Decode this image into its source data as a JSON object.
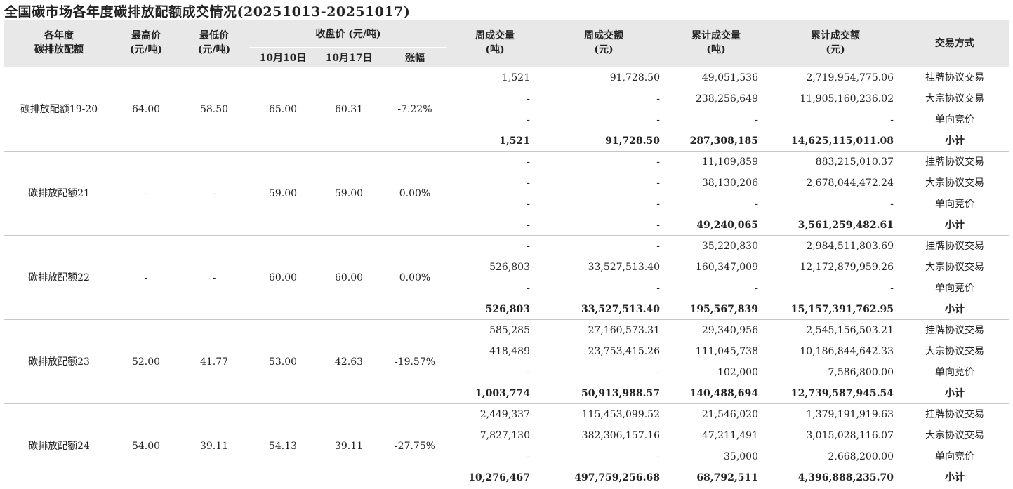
{
  "title": "全国碳市场各年度碳排放配额成交情况(20251013-20251017)",
  "headers": {
    "col1_line1": "各年度",
    "col1_line2": "碳排放配额",
    "high_line1": "最高价",
    "high_line2": "(元/吨)",
    "low_line1": "最低价",
    "low_line2": "(元/吨)",
    "close_group": "收盘价 (元/吨)",
    "close_d1": "10月10日",
    "close_d2": "10月17日",
    "change": "涨幅",
    "wvol_line1": "周成交量",
    "wvol_line2": "(吨)",
    "wamt_line1": "周成交额",
    "wamt_line2": "(元)",
    "cvol_line1": "累计成交量",
    "cvol_line2": "(吨)",
    "camt_line1": "累计成交额",
    "camt_line2": "(元)",
    "method": "交易方式"
  },
  "groups": [
    {
      "name": "碳排放配额19-20",
      "high": "64.00",
      "low": "58.50",
      "close1": "65.00",
      "close2": "60.31",
      "change": "-7.22%",
      "rows": [
        {
          "wvol": "1,521",
          "wamt": "91,728.50",
          "cvol": "49,051,536",
          "camt": "2,719,954,775.06",
          "method": "挂牌协议交易"
        },
        {
          "wvol": "-",
          "wamt": "-",
          "cvol": "238,256,649",
          "camt": "11,905,160,236.02",
          "method": "大宗协议交易"
        },
        {
          "wvol": "-",
          "wamt": "-",
          "cvol": "-",
          "camt": "-",
          "method": "单向竞价"
        },
        {
          "wvol": "1,521",
          "wamt": "91,728.50",
          "cvol": "287,308,185",
          "camt": "14,625,115,011.08",
          "method": "小计"
        }
      ]
    },
    {
      "name": "碳排放配额21",
      "high": "-",
      "low": "-",
      "close1": "59.00",
      "close2": "59.00",
      "change": "0.00%",
      "rows": [
        {
          "wvol": "-",
          "wamt": "-",
          "cvol": "11,109,859",
          "camt": "883,215,010.37",
          "method": "挂牌协议交易"
        },
        {
          "wvol": "-",
          "wamt": "-",
          "cvol": "38,130,206",
          "camt": "2,678,044,472.24",
          "method": "大宗协议交易"
        },
        {
          "wvol": "-",
          "wamt": "-",
          "cvol": "-",
          "camt": "-",
          "method": "单向竞价"
        },
        {
          "wvol": "-",
          "wamt": "-",
          "cvol": "49,240,065",
          "camt": "3,561,259,482.61",
          "method": "小计"
        }
      ]
    },
    {
      "name": "碳排放配额22",
      "high": "-",
      "low": "-",
      "close1": "60.00",
      "close2": "60.00",
      "change": "0.00%",
      "rows": [
        {
          "wvol": "-",
          "wamt": "-",
          "cvol": "35,220,830",
          "camt": "2,984,511,803.69",
          "method": "挂牌协议交易"
        },
        {
          "wvol": "526,803",
          "wamt": "33,527,513.40",
          "cvol": "160,347,009",
          "camt": "12,172,879,959.26",
          "method": "大宗协议交易"
        },
        {
          "wvol": "-",
          "wamt": "-",
          "cvol": "-",
          "camt": "-",
          "method": "单向竞价"
        },
        {
          "wvol": "526,803",
          "wamt": "33,527,513.40",
          "cvol": "195,567,839",
          "camt": "15,157,391,762.95",
          "method": "小计"
        }
      ]
    },
    {
      "name": "碳排放配额23",
      "high": "52.00",
      "low": "41.77",
      "close1": "53.00",
      "close2": "42.63",
      "change": "-19.57%",
      "rows": [
        {
          "wvol": "585,285",
          "wamt": "27,160,573.31",
          "cvol": "29,340,956",
          "camt": "2,545,156,503.21",
          "method": "挂牌协议交易"
        },
        {
          "wvol": "418,489",
          "wamt": "23,753,415.26",
          "cvol": "111,045,738",
          "camt": "10,186,844,642.33",
          "method": "大宗协议交易"
        },
        {
          "wvol": "-",
          "wamt": "-",
          "cvol": "102,000",
          "camt": "7,586,800.00",
          "method": "单向竞价"
        },
        {
          "wvol": "1,003,774",
          "wamt": "50,913,988.57",
          "cvol": "140,488,694",
          "camt": "12,739,587,945.54",
          "method": "小计"
        }
      ]
    },
    {
      "name": "碳排放配额24",
      "high": "54.00",
      "low": "39.11",
      "close1": "54.13",
      "close2": "39.11",
      "change": "-27.75%",
      "rows": [
        {
          "wvol": "2,449,337",
          "wamt": "115,453,099.52",
          "cvol": "21,546,020",
          "camt": "1,379,191,919.63",
          "method": "挂牌协议交易"
        },
        {
          "wvol": "7,827,130",
          "wamt": "382,306,157.16",
          "cvol": "47,211,491",
          "camt": "3,015,028,116.07",
          "method": "大宗协议交易"
        },
        {
          "wvol": "-",
          "wamt": "-",
          "cvol": "35,000",
          "camt": "2,668,200.00",
          "method": "单向竞价"
        },
        {
          "wvol": "10,276,467",
          "wamt": "497,759,256.68",
          "cvol": "68,792,511",
          "camt": "4,396,888,235.70",
          "method": "小计"
        }
      ]
    }
  ]
}
